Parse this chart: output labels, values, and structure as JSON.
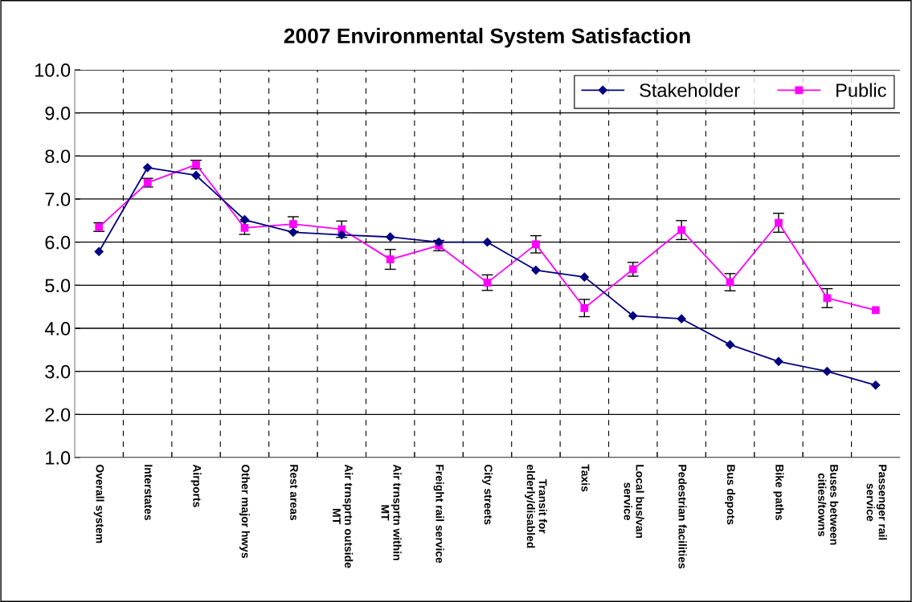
{
  "chart_data": {
    "type": "line",
    "title": "2007 Environmental System Satisfaction",
    "categories": [
      "Overall system",
      "Interstates",
      "Airports",
      "Other major hwys",
      "Rest areas",
      "Air trnsprtn outside\nMT",
      "Air trnsprtn within\nMT",
      "Freight rail service",
      "City streets",
      "Transit for\nelderly/disabled",
      "Taxis",
      "Local bus/van\nservice",
      "Pedestrian facilities",
      "Bus depots",
      "Bike paths",
      "Buses between\ncities/towns",
      "Passenger rail\nservice"
    ],
    "series": [
      {
        "name": "Stakeholder",
        "color": "#000080",
        "marker": "diamond",
        "values": [
          5.78,
          7.73,
          7.55,
          6.52,
          6.23,
          6.17,
          6.12,
          6.0,
          6.0,
          5.35,
          5.19,
          4.29,
          4.22,
          3.62,
          3.23,
          3.0,
          2.68
        ]
      },
      {
        "name": "Public",
        "color": "#ff00ff",
        "marker": "square",
        "values": [
          6.35,
          7.38,
          7.8,
          6.33,
          6.42,
          6.3,
          5.6,
          5.92,
          5.06,
          5.95,
          4.47,
          5.37,
          6.28,
          5.07,
          6.45,
          4.7,
          4.42
        ],
        "errors": [
          0.1,
          0.1,
          0.1,
          0.15,
          0.17,
          0.19,
          0.23,
          0.12,
          0.18,
          0.2,
          0.2,
          0.16,
          0.22,
          0.2,
          0.22,
          0.22,
          null
        ]
      }
    ],
    "ylim": [
      1.0,
      10.0
    ],
    "yticks": [
      {
        "value": 1,
        "label": "1.0"
      },
      {
        "value": 2,
        "label": "2.0"
      },
      {
        "value": 3,
        "label": "3.0"
      },
      {
        "value": 4,
        "label": "4.0"
      },
      {
        "value": 5,
        "label": "5.0"
      },
      {
        "value": 6,
        "label": "6.0"
      },
      {
        "value": 7,
        "label": "7.0"
      },
      {
        "value": 8,
        "label": "8.0"
      },
      {
        "value": 9,
        "label": "9.0"
      },
      {
        "value": 10,
        "label": "10.0"
      }
    ],
    "grid": true,
    "legend": "top right"
  }
}
